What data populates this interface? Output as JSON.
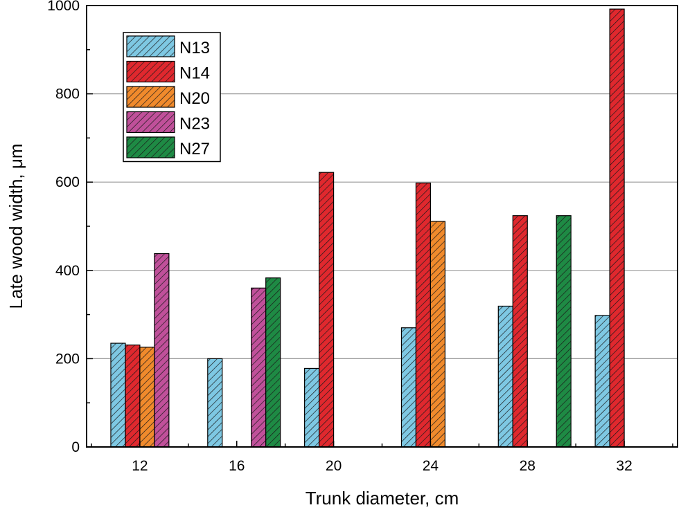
{
  "chart_data": {
    "type": "bar",
    "title": "",
    "xlabel": "Trunk diameter, cm",
    "ylabel": "Late wood width, μm",
    "categories": [
      "12",
      "16",
      "20",
      "24",
      "28",
      "32"
    ],
    "x_tick_labels": [
      "12",
      "16",
      "20",
      "24",
      "28",
      "32"
    ],
    "y_ticks": [
      "0",
      "200",
      "400",
      "600",
      "800",
      "1000"
    ],
    "ylim": [
      0,
      1000
    ],
    "grid": "horizontal",
    "legend_position": "top-left",
    "bar_style": "diagonal hatch",
    "series": [
      {
        "name": "N13",
        "color": "#7ec8e3",
        "values": [
          235,
          200,
          178,
          270,
          319,
          298
        ]
      },
      {
        "name": "N14",
        "color": "#e0282e",
        "values": [
          231,
          null,
          622,
          598,
          524,
          992
        ]
      },
      {
        "name": "N20",
        "color": "#f08a2c",
        "values": [
          226,
          null,
          null,
          511,
          null,
          null
        ]
      },
      {
        "name": "N23",
        "color": "#c0509a",
        "values": [
          438,
          360,
          null,
          null,
          null,
          null
        ]
      },
      {
        "name": "N27",
        "color": "#1e8a44",
        "values": [
          null,
          383,
          null,
          null,
          524,
          null
        ]
      }
    ],
    "bar_x_positions": [
      [
        11.1,
        15.1,
        19.1,
        23.1,
        27.1,
        31.1
      ],
      [
        11.7,
        0,
        19.7,
        23.7,
        27.7,
        31.7
      ],
      [
        12.3,
        0,
        0,
        24.3,
        0,
        0
      ],
      [
        12.9,
        16.9,
        0,
        0,
        0,
        0
      ],
      [
        0,
        17.5,
        0,
        0,
        29.5,
        0
      ]
    ],
    "xlim": [
      9.8,
      34.2
    ],
    "x_tick_values": [
      12,
      16,
      20,
      24,
      28,
      32
    ]
  }
}
